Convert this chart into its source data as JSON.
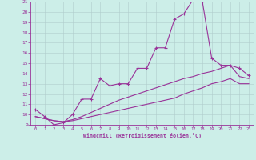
{
  "xlabel": "Windchill (Refroidissement éolien,°C)",
  "background_color": "#cceee8",
  "grid_color": "#b0cccc",
  "line_color": "#993399",
  "x_ticks": [
    0,
    1,
    2,
    3,
    4,
    5,
    6,
    7,
    8,
    9,
    10,
    11,
    12,
    13,
    14,
    15,
    16,
    17,
    18,
    19,
    20,
    21,
    22,
    23
  ],
  "y_ticks": [
    9,
    10,
    11,
    12,
    13,
    14,
    15,
    16,
    17,
    18,
    19,
    20,
    21
  ],
  "xlim": [
    -0.5,
    23.5
  ],
  "ylim": [
    9,
    21
  ],
  "line1_x": [
    0,
    1,
    2,
    3,
    4,
    5,
    6,
    7,
    8,
    9,
    10,
    11,
    12,
    13,
    14,
    15,
    16,
    17,
    18,
    19,
    20,
    21,
    22,
    23
  ],
  "line1_y": [
    10.5,
    9.8,
    9.0,
    9.2,
    10.0,
    11.5,
    11.5,
    13.5,
    12.8,
    13.0,
    13.0,
    14.5,
    14.5,
    16.5,
    16.5,
    19.3,
    19.8,
    21.2,
    21.0,
    15.5,
    14.8,
    14.8,
    14.5,
    13.8
  ],
  "line2_x": [
    0,
    1,
    2,
    3,
    4,
    5,
    6,
    7,
    8,
    9,
    10,
    11,
    12,
    13,
    14,
    15,
    16,
    17,
    18,
    19,
    20,
    21,
    22,
    23
  ],
  "line2_y": [
    9.8,
    9.6,
    9.4,
    9.3,
    9.4,
    9.6,
    9.8,
    10.0,
    10.2,
    10.4,
    10.6,
    10.8,
    11.0,
    11.2,
    11.4,
    11.6,
    12.0,
    12.3,
    12.6,
    13.0,
    13.2,
    13.5,
    13.0,
    13.0
  ],
  "line3_x": [
    0,
    1,
    2,
    3,
    4,
    5,
    6,
    7,
    8,
    9,
    10,
    11,
    12,
    13,
    14,
    15,
    16,
    17,
    18,
    19,
    20,
    21,
    22,
    23
  ],
  "line3_y": [
    9.8,
    9.6,
    9.4,
    9.3,
    9.5,
    9.8,
    10.2,
    10.6,
    11.0,
    11.4,
    11.7,
    12.0,
    12.3,
    12.6,
    12.9,
    13.2,
    13.5,
    13.7,
    14.0,
    14.2,
    14.5,
    14.8,
    13.7,
    13.5
  ]
}
